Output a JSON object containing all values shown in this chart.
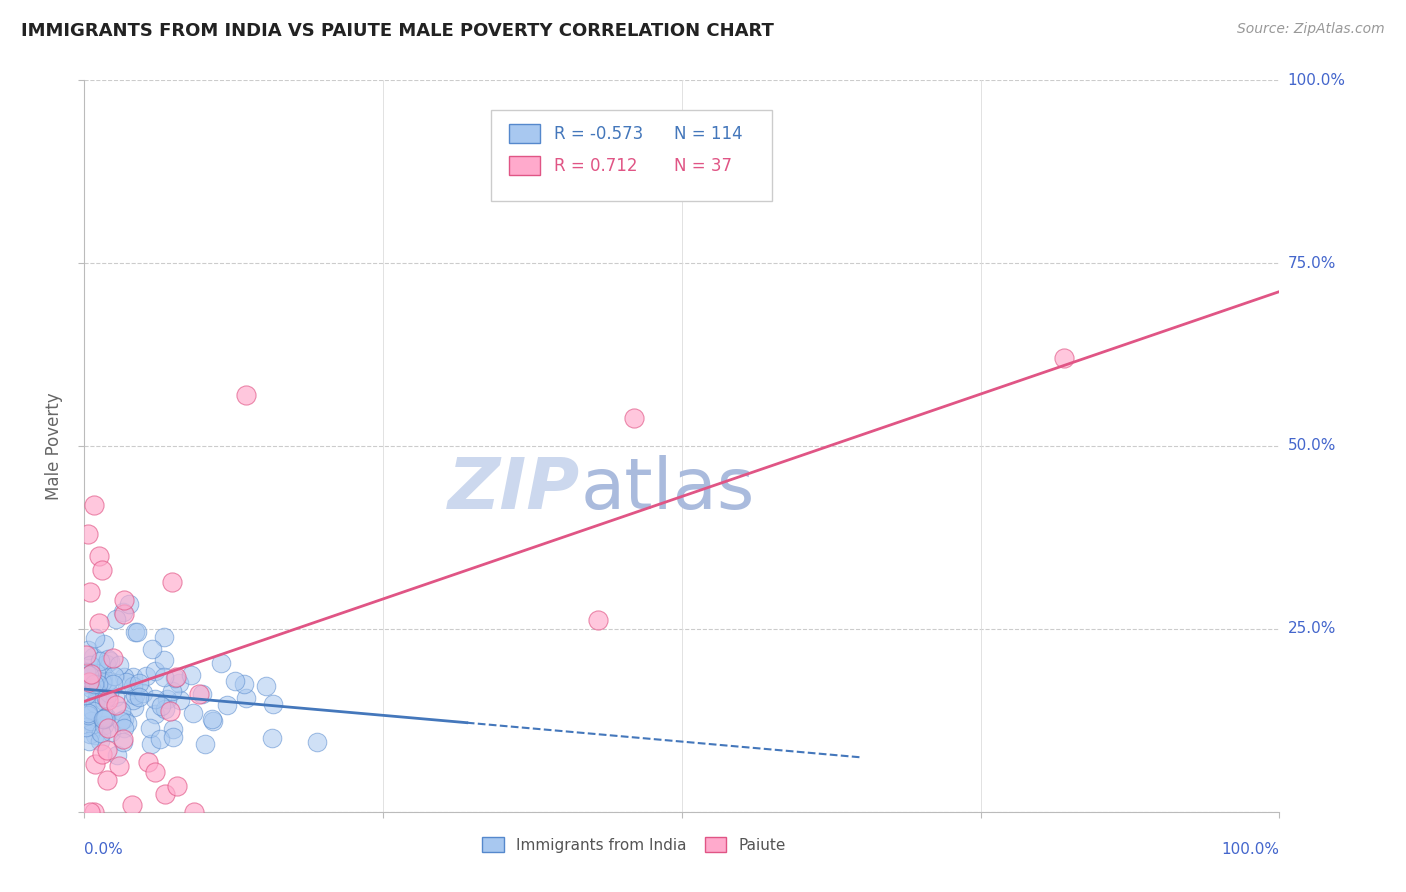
{
  "title": "IMMIGRANTS FROM INDIA VS PAIUTE MALE POVERTY CORRELATION CHART",
  "source": "Source: ZipAtlas.com",
  "ylabel": "Male Poverty",
  "R_india": -0.573,
  "N_india": 114,
  "R_paiute": 0.712,
  "N_paiute": 37,
  "color_india_fill": "#a8c8f0",
  "color_india_edge": "#5588cc",
  "color_india_line": "#4477bb",
  "color_paiute_fill": "#ffaacc",
  "color_paiute_edge": "#e05585",
  "color_paiute_line": "#e05585",
  "color_axis_labels": "#4466cc",
  "title_color": "#222222",
  "watermark_zip_color": "#ccd8ee",
  "watermark_atlas_color": "#aabbdd",
  "background": "#ffffff",
  "grid_color": "#cccccc",
  "legend_text_india": "R = -0.573   N = 114",
  "legend_text_paiute": "R =  0.712   N =  37",
  "bottom_legend_india": "Immigrants from India",
  "bottom_legend_paiute": "Paiute"
}
